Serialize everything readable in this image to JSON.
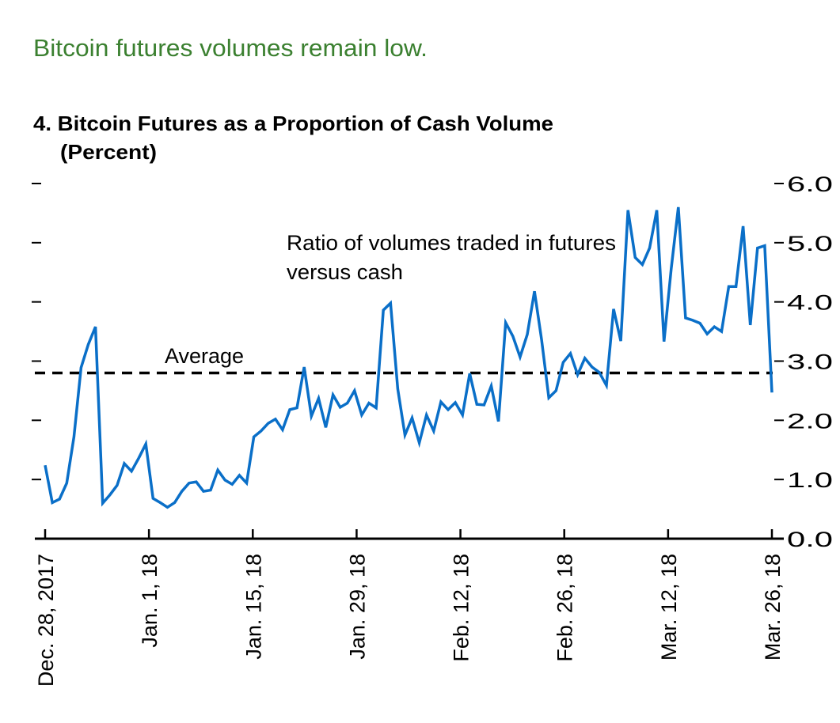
{
  "headline": "Bitcoin futures volumes remain low.",
  "colors": {
    "headline": "#3b8030",
    "series": "#0a6fc8",
    "average": "#000000",
    "axis": "#000000"
  },
  "chart_data": {
    "type": "line",
    "title": "4. Bitcoin Futures as a Proportion of Cash Volume",
    "subtitle": "(Percent)",
    "ylim": [
      0,
      6
    ],
    "y_ticks": [
      "0.0",
      "1.0",
      "2.0",
      "3.0",
      "4.0",
      "5.0",
      "6.0"
    ],
    "y_axis_side": "right",
    "grid": false,
    "x_tick_labels": [
      "Dec. 28, 2017",
      "Jan. 1, 18",
      "Jan. 15, 18",
      "Jan. 29, 18",
      "Feb. 12, 18",
      "Feb. 26, 18",
      "Mar. 12, 18",
      "Mar. 26, 18"
    ],
    "series": [
      {
        "values": [
          1.24,
          0.61,
          0.67,
          0.94,
          1.72,
          2.89,
          3.28,
          3.58,
          0.6,
          0.74,
          0.9,
          1.27,
          1.14,
          1.36,
          1.6,
          0.68,
          0.61,
          0.53,
          0.61,
          0.8,
          0.94,
          0.96,
          0.8,
          0.82,
          1.16,
          0.99,
          0.92,
          1.07,
          0.94,
          1.72,
          1.82,
          1.95,
          2.02,
          1.84,
          2.18,
          2.21,
          2.9,
          2.07,
          2.37,
          1.88,
          2.43,
          2.22,
          2.29,
          2.5,
          2.09,
          2.29,
          2.21,
          3.86,
          3.98,
          2.53,
          1.75,
          2.04,
          1.62,
          2.09,
          1.82,
          2.31,
          2.18,
          2.3,
          2.09,
          2.79,
          2.27,
          2.26,
          2.58,
          1.98,
          3.65,
          3.42,
          3.07,
          3.45,
          4.18,
          3.36,
          2.38,
          2.5,
          2.98,
          3.13,
          2.77,
          3.05,
          2.9,
          2.81,
          2.59,
          3.88,
          3.34,
          5.55,
          4.75,
          4.63,
          4.91,
          5.55,
          3.33,
          4.56,
          5.6,
          3.73,
          3.69,
          3.64,
          3.46,
          3.58,
          3.5,
          4.26,
          4.26,
          5.28,
          3.61,
          4.91,
          4.95,
          2.47
        ]
      }
    ],
    "average": {
      "label": "Average",
      "value": 2.8
    },
    "annotations": [
      "Ratio of volumes traded in futures",
      "versus cash"
    ]
  }
}
